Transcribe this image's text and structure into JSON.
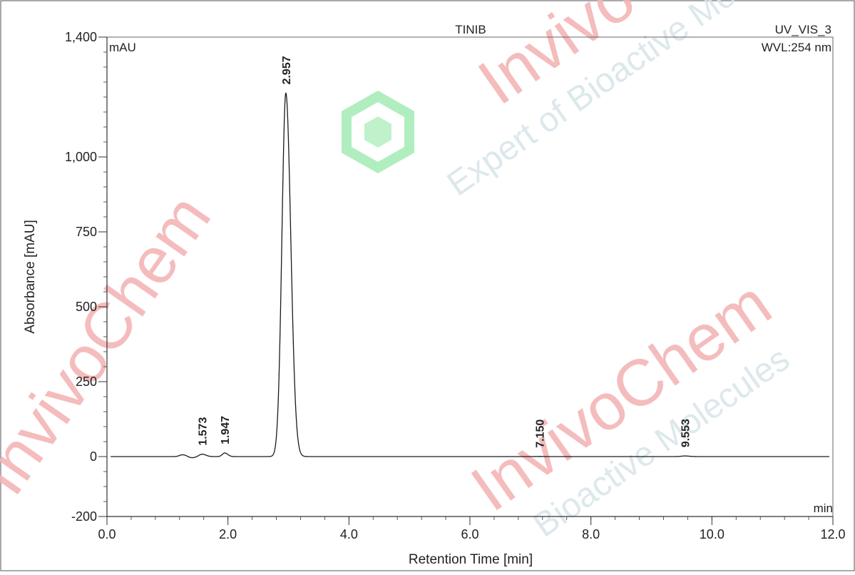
{
  "chart_data": {
    "type": "line",
    "title": "TINIB",
    "channel": "UV_VIS_3",
    "wavelength": "WVL:254 nm",
    "ylabel": "Absorbance [mAU]",
    "yunit": "mAU",
    "xlabel": "Retention Time [min]",
    "xunit": "min",
    "xlim": [
      0,
      12
    ],
    "ylim": [
      -200,
      1400
    ],
    "xticks": [
      0,
      2,
      4,
      6,
      8,
      10,
      12
    ],
    "xtick_labels": [
      "0.0",
      "2.0",
      "4.0",
      "6.0",
      "8.0",
      "10.0",
      "12.0"
    ],
    "yticks": [
      -200,
      0,
      250,
      500,
      750,
      1000,
      1400
    ],
    "ytick_labels": [
      "-200",
      "0",
      "250",
      "500",
      "750",
      "1,000",
      "1,400"
    ],
    "grid": false,
    "colors": {
      "trace": "#1a1a1a",
      "axis": "#333333",
      "frame": "#555555"
    },
    "peaks": [
      {
        "rt": 1.573,
        "label": "1.573",
        "height": 8,
        "width": 0.05
      },
      {
        "rt": 1.947,
        "label": "1.947",
        "height": 12,
        "width": 0.04
      },
      {
        "rt": 2.957,
        "label": "2.957",
        "height": 1213,
        "width": 0.065
      },
      {
        "rt": 7.15,
        "label": "7.150",
        "height": 0.5,
        "width": 0.05
      },
      {
        "rt": 9.553,
        "label": "9.553",
        "height": 2,
        "width": 0.06
      }
    ],
    "minor_features": [
      {
        "rt": 1.25,
        "height": 6,
        "width": 0.05
      },
      {
        "rt": 1.4,
        "height": -4,
        "width": 0.05
      }
    ]
  },
  "watermark": {
    "brand": "InvivoChem",
    "tagline_1": "Expert of Bioactive Molecules",
    "tagline_2": "Bioactive Molecules"
  }
}
